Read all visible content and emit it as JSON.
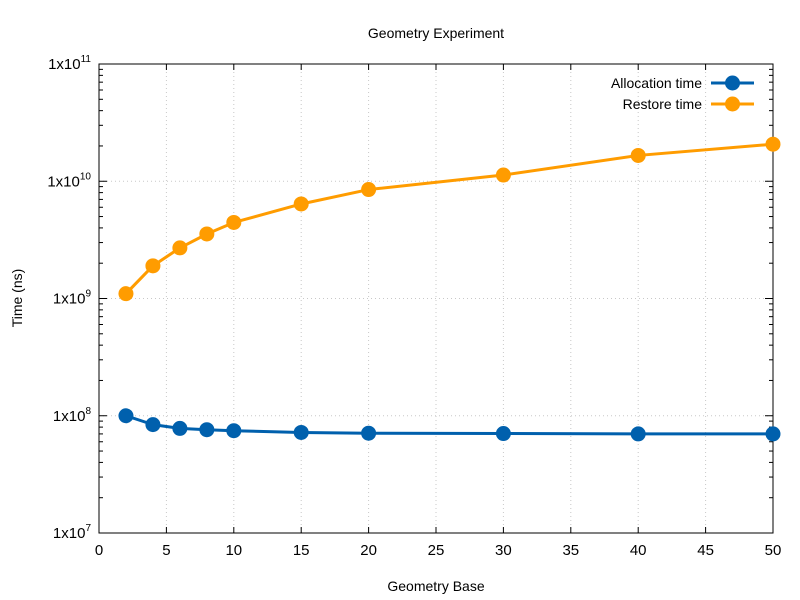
{
  "chart_data": {
    "type": "line",
    "title": "Geometry Experiment",
    "xlabel": "Geometry Base",
    "ylabel": "Time (ns)",
    "x_scale": "linear",
    "y_scale": "log",
    "xlim": [
      0,
      50
    ],
    "ylim": [
      10000000,
      100000000000
    ],
    "grid": true,
    "legend_position": "top-right",
    "x_ticks": [
      "0",
      "5",
      "10",
      "15",
      "20",
      "25",
      "30",
      "35",
      "40",
      "45",
      "50"
    ],
    "y_ticks": [
      {
        "base": "1x10",
        "exp": "7"
      },
      {
        "base": "1x10",
        "exp": "8"
      },
      {
        "base": "1x10",
        "exp": "9"
      },
      {
        "base": "1x10",
        "exp": "10"
      },
      {
        "base": "1x10",
        "exp": "11"
      }
    ],
    "x": [
      2,
      4,
      6,
      8,
      10,
      15,
      20,
      30,
      40,
      50
    ],
    "series": [
      {
        "name": "Allocation time",
        "color": "#0060ad",
        "values": [
          100000000,
          84000000,
          78000000,
          76000000,
          74500000,
          72000000,
          71000000,
          70500000,
          70000000,
          70000000
        ]
      },
      {
        "name": "Restore time",
        "color": "#ff9c00",
        "values": [
          1100000000,
          1900000000,
          2700000000,
          3550000000,
          4450000000,
          6400000000,
          8500000000,
          11300000000,
          16600000000,
          20700000000
        ]
      }
    ]
  }
}
